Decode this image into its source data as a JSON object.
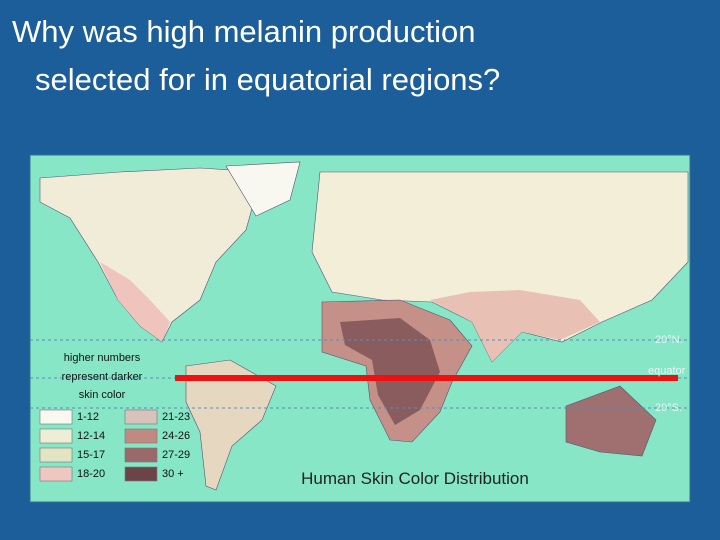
{
  "title": {
    "lines": [
      "Why was high melanin production",
      "selected for in equatorial regions?"
    ]
  },
  "map": {
    "caption": "Human Skin Color Distribution",
    "latitude_labels": [
      "20°N.",
      "equator",
      "20°S."
    ],
    "legend": {
      "note": [
        "higher numbers",
        "represent darker",
        "skin color"
      ],
      "items": [
        {
          "label": "1-12",
          "color": "#f8f8f0"
        },
        {
          "label": "12-14",
          "color": "#eeeed6"
        },
        {
          "label": "15-17",
          "color": "#e2e4c4"
        },
        {
          "label": "18-20",
          "color": "#f0c6c0"
        },
        {
          "label": "21-23",
          "color": "#d8c2bc"
        },
        {
          "label": "24-26",
          "color": "#c08a82"
        },
        {
          "label": "27-29",
          "color": "#9a6a6a"
        },
        {
          "label": "30 +",
          "color": "#6c4448"
        }
      ]
    }
  }
}
